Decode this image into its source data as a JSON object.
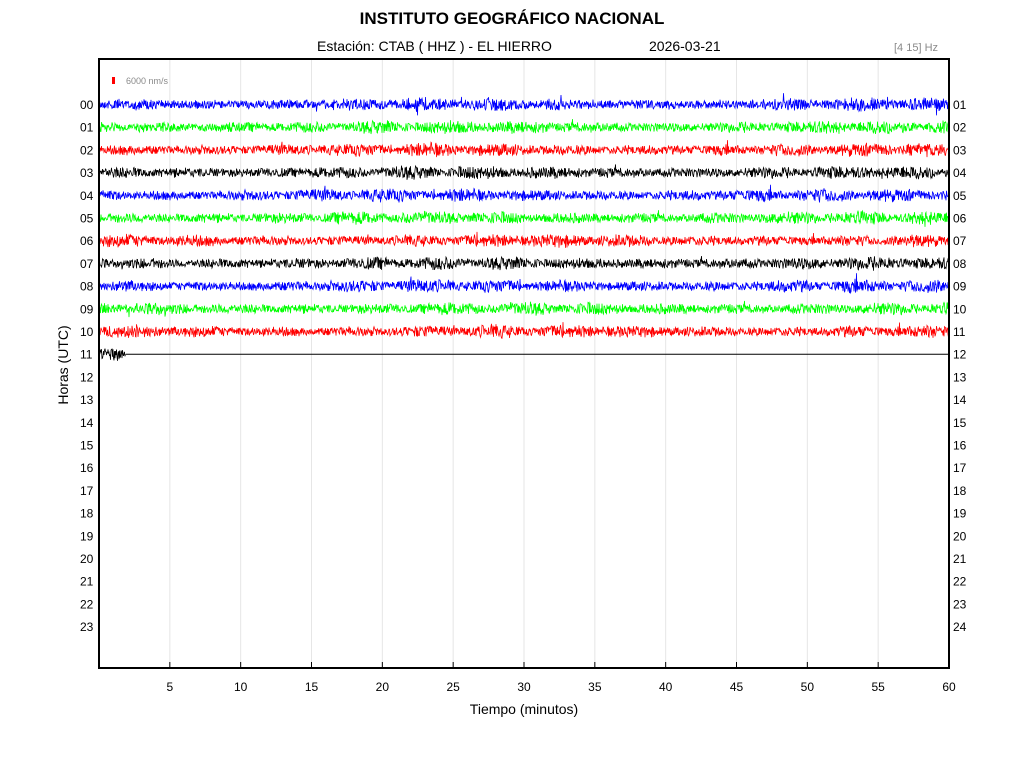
{
  "header": {
    "title": "INSTITUTO GEOGRÁFICO NACIONAL",
    "station_label": "Estación:  CTAB ( HHZ ) - EL HIERRO",
    "date": "2026-03-21",
    "band": "[4 15] Hz"
  },
  "scale_label": "6000 nm/s",
  "chart_data": {
    "type": "line",
    "title": "INSTITUTO GEOGRÁFICO NACIONAL",
    "xlabel": "Tiempo (minutos)",
    "ylabel": "Horas (UTC)",
    "xlim": [
      0,
      60
    ],
    "x_ticks": [
      5,
      10,
      15,
      20,
      25,
      30,
      35,
      40,
      45,
      50,
      55,
      60
    ],
    "left_hour_labels": [
      "00",
      "01",
      "02",
      "03",
      "04",
      "05",
      "06",
      "07",
      "08",
      "09",
      "10",
      "11",
      "12",
      "13",
      "14",
      "15",
      "16",
      "17",
      "18",
      "19",
      "20",
      "21",
      "22",
      "23"
    ],
    "right_hour_labels": [
      "01",
      "02",
      "03",
      "04",
      "05",
      "06",
      "07",
      "08",
      "09",
      "10",
      "11",
      "12",
      "13",
      "14",
      "15",
      "16",
      "17",
      "18",
      "19",
      "20",
      "21",
      "22",
      "23",
      "24"
    ],
    "trace_colors": [
      "#0000ff",
      "#00ff00",
      "#ff0000",
      "#000000"
    ],
    "series": [
      {
        "hour": "00",
        "minutes_recorded": 60,
        "color": "#0000ff"
      },
      {
        "hour": "01",
        "minutes_recorded": 60,
        "color": "#00ff00"
      },
      {
        "hour": "02",
        "minutes_recorded": 60,
        "color": "#ff0000"
      },
      {
        "hour": "03",
        "minutes_recorded": 60,
        "color": "#000000"
      },
      {
        "hour": "04",
        "minutes_recorded": 60,
        "color": "#0000ff"
      },
      {
        "hour": "05",
        "minutes_recorded": 60,
        "color": "#00ff00"
      },
      {
        "hour": "06",
        "minutes_recorded": 60,
        "color": "#ff0000"
      },
      {
        "hour": "07",
        "minutes_recorded": 60,
        "color": "#000000"
      },
      {
        "hour": "08",
        "minutes_recorded": 60,
        "color": "#0000ff"
      },
      {
        "hour": "09",
        "minutes_recorded": 60,
        "color": "#00ff00"
      },
      {
        "hour": "10",
        "minutes_recorded": 60,
        "color": "#ff0000"
      },
      {
        "hour": "11",
        "minutes_recorded": 1.9,
        "color": "#000000"
      }
    ],
    "grid": true,
    "legend": "none"
  }
}
